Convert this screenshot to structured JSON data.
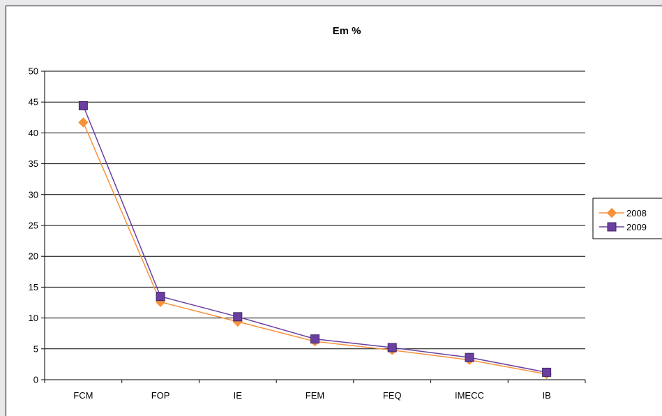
{
  "chart_data": {
    "type": "line",
    "title": "Em %",
    "categories": [
      "FCM",
      "FOP",
      "IE",
      "FEM",
      "FEQ",
      "IMECC",
      "IB"
    ],
    "ylim": [
      0,
      50
    ],
    "yticks": [
      0,
      5,
      10,
      15,
      20,
      25,
      30,
      35,
      40,
      45,
      50
    ],
    "grid": true,
    "legend_position": "right",
    "series": [
      {
        "name": "2008",
        "values": [
          41.7,
          12.6,
          9.4,
          6.2,
          4.8,
          3.2,
          0.9
        ],
        "color": "#f7923a",
        "marker": "diamond"
      },
      {
        "name": "2009",
        "values": [
          44.4,
          13.5,
          10.2,
          6.6,
          5.2,
          3.6,
          1.2
        ],
        "color": "#6b3fa0",
        "marker": "square"
      }
    ]
  }
}
